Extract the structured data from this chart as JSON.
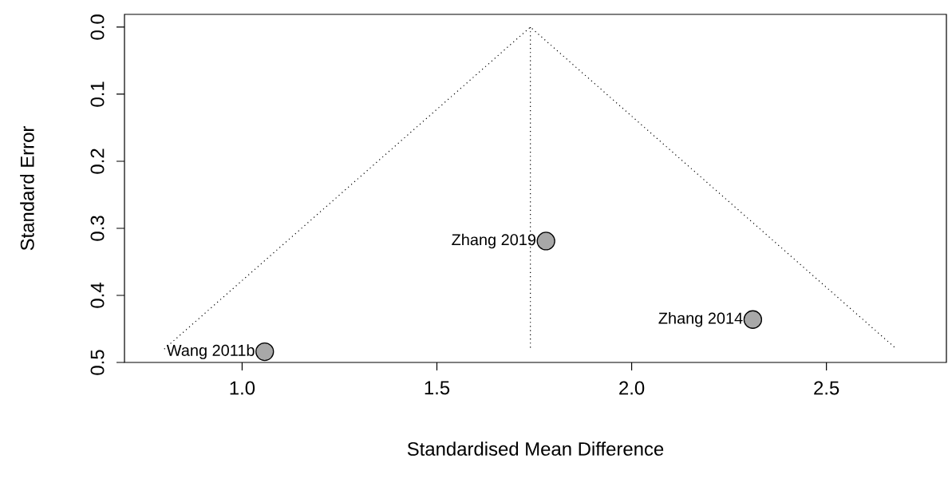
{
  "chart_data": {
    "type": "scatter",
    "xlabel": "Standardised Mean Difference",
    "ylabel": "Standard Error",
    "xlim": [
      0.698,
      2.808
    ],
    "ylim": [
      0.5,
      -0.019
    ],
    "xticks": [
      {
        "value": 1.0,
        "label": "1.0"
      },
      {
        "value": 1.5,
        "label": "1.5"
      },
      {
        "value": 2.0,
        "label": "2.0"
      },
      {
        "value": 2.5,
        "label": "2.5"
      }
    ],
    "yticks": [
      {
        "value": 0.0,
        "label": "0.0"
      },
      {
        "value": 0.1,
        "label": "0.1"
      },
      {
        "value": 0.2,
        "label": "0.2"
      },
      {
        "value": 0.3,
        "label": "0.3"
      },
      {
        "value": 0.4,
        "label": "0.4"
      },
      {
        "value": 0.5,
        "label": "0.5"
      }
    ],
    "series": [
      {
        "type": "line",
        "line_style": "dotted",
        "marker": "none",
        "color": "#000000",
        "x": [
          0.8,
          1.74,
          2.68
        ],
        "values": [
          0.48,
          0.0,
          0.48
        ]
      },
      {
        "type": "line",
        "line_style": "dotted",
        "marker": "none",
        "color": "#000000",
        "x": [
          1.74,
          1.74
        ],
        "values": [
          0.0,
          0.48
        ]
      },
      {
        "marker": "circle",
        "color": "#a8a8a8",
        "x": [
          1.058,
          1.78,
          2.311
        ],
        "values": [
          0.484,
          0.319,
          0.436
        ]
      }
    ],
    "annotations": [
      {
        "text": "Wang 2011b",
        "x": 1.058,
        "y": 0.484
      },
      {
        "text": "Zhang 2019",
        "x": 1.78,
        "y": 0.319
      },
      {
        "text": "Zhang 2014",
        "x": 2.311,
        "y": 0.436
      }
    ]
  }
}
